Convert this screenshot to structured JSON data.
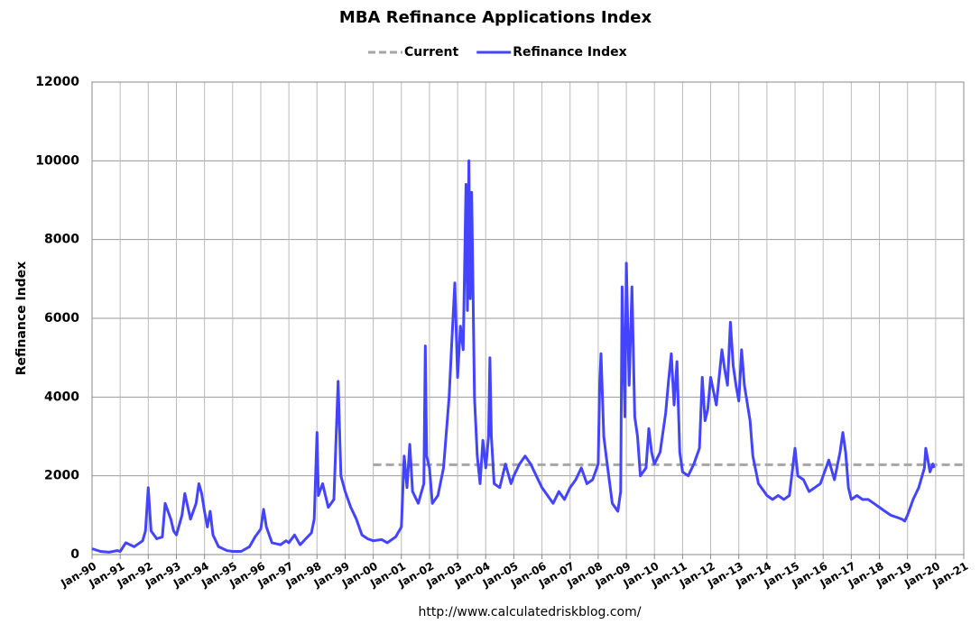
{
  "chart_data": {
    "type": "line",
    "title": "MBA Refinance Applications Index",
    "y_label": "Refinance Index",
    "source": "http://www.calculatedriskblog.com/",
    "xlim": [
      1990,
      2021
    ],
    "ylim": [
      0,
      12000
    ],
    "yticks": [
      0,
      2000,
      4000,
      6000,
      8000,
      10000,
      12000
    ],
    "grid": true,
    "legend": "top",
    "xticks": [
      {
        "value": 1990,
        "label": "Jan-90"
      },
      {
        "value": 1991,
        "label": "Jan-91"
      },
      {
        "value": 1992,
        "label": "Jan-92"
      },
      {
        "value": 1993,
        "label": "Jan-93"
      },
      {
        "value": 1994,
        "label": "Jan-94"
      },
      {
        "value": 1995,
        "label": "Jan-95"
      },
      {
        "value": 1996,
        "label": "Jan-96"
      },
      {
        "value": 1997,
        "label": "Jan-97"
      },
      {
        "value": 1998,
        "label": "Jan-98"
      },
      {
        "value": 1999,
        "label": "Jan-99"
      },
      {
        "value": 2000,
        "label": "Jan-00"
      },
      {
        "value": 2001,
        "label": "Jan-01"
      },
      {
        "value": 2002,
        "label": "Jan-02"
      },
      {
        "value": 2003,
        "label": "Jan-03"
      },
      {
        "value": 2004,
        "label": "Jan-04"
      },
      {
        "value": 2005,
        "label": "Jan-05"
      },
      {
        "value": 2006,
        "label": "Jan-06"
      },
      {
        "value": 2007,
        "label": "Jan-07"
      },
      {
        "value": 2008,
        "label": "Jan-08"
      },
      {
        "value": 2009,
        "label": "Jan-09"
      },
      {
        "value": 2010,
        "label": "Jan-10"
      },
      {
        "value": 2011,
        "label": "Jan-11"
      },
      {
        "value": 2012,
        "label": "Jan-12"
      },
      {
        "value": 2013,
        "label": "Jan-13"
      },
      {
        "value": 2014,
        "label": "Jan-14"
      },
      {
        "value": 2015,
        "label": "Jan-15"
      },
      {
        "value": 2016,
        "label": "Jan-16"
      },
      {
        "value": 2017,
        "label": "Jan-17"
      },
      {
        "value": 2018,
        "label": "Jan-18"
      },
      {
        "value": 2019,
        "label": "Jan-19"
      },
      {
        "value": 2020,
        "label": "Jan-20"
      },
      {
        "value": 2021,
        "label": "Jan-21"
      }
    ],
    "series": [
      {
        "name": "Current",
        "color": "#a6a6a6",
        "dashed": true,
        "x": [
          2000,
          2021
        ],
        "values": [
          2280,
          2280
        ]
      },
      {
        "name": "Refinance Index",
        "color": "#4444ff",
        "dashed": false,
        "x": [
          1990.0,
          1990.3,
          1990.6,
          1990.9,
          1991.0,
          1991.2,
          1991.5,
          1991.8,
          1991.9,
          1992.0,
          1992.1,
          1992.3,
          1992.5,
          1992.6,
          1992.8,
          1992.9,
          1993.0,
          1993.2,
          1993.3,
          1993.5,
          1993.7,
          1993.8,
          1993.9,
          1994.0,
          1994.1,
          1994.2,
          1994.3,
          1994.5,
          1994.8,
          1995.0,
          1995.3,
          1995.6,
          1995.8,
          1996.0,
          1996.1,
          1996.2,
          1996.4,
          1996.7,
          1996.9,
          1997.0,
          1997.2,
          1997.4,
          1997.6,
          1997.8,
          1997.9,
          1998.0,
          1998.05,
          1998.2,
          1998.4,
          1998.6,
          1998.75,
          1998.85,
          1999.0,
          1999.2,
          1999.4,
          1999.6,
          1999.8,
          2000.0,
          2000.3,
          2000.5,
          2000.8,
          2001.0,
          2001.1,
          2001.2,
          2001.3,
          2001.4,
          2001.6,
          2001.8,
          2001.85,
          2001.9,
          2002.0,
          2002.1,
          2002.3,
          2002.5,
          2002.7,
          2002.8,
          2002.9,
          2003.0,
          2003.1,
          2003.2,
          2003.3,
          2003.35,
          2003.4,
          2003.45,
          2003.5,
          2003.6,
          2003.7,
          2003.8,
          2003.9,
          2004.0,
          2004.1,
          2004.15,
          2004.2,
          2004.3,
          2004.5,
          2004.7,
          2004.9,
          2005.0,
          2005.2,
          2005.4,
          2005.6,
          2005.8,
          2006.0,
          2006.2,
          2006.4,
          2006.6,
          2006.8,
          2007.0,
          2007.2,
          2007.4,
          2007.6,
          2007.8,
          2008.0,
          2008.05,
          2008.1,
          2008.2,
          2008.3,
          2008.5,
          2008.7,
          2008.8,
          2008.85,
          2008.95,
          2009.0,
          2009.1,
          2009.2,
          2009.3,
          2009.4,
          2009.5,
          2009.7,
          2009.8,
          2009.9,
          2010.0,
          2010.2,
          2010.4,
          2010.5,
          2010.6,
          2010.7,
          2010.8,
          2010.9,
          2011.0,
          2011.2,
          2011.4,
          2011.6,
          2011.7,
          2011.8,
          2011.9,
          2012.0,
          2012.2,
          2012.4,
          2012.5,
          2012.6,
          2012.7,
          2012.8,
          2012.9,
          2013.0,
          2013.1,
          2013.2,
          2013.4,
          2013.5,
          2013.7,
          2013.9,
          2014.0,
          2014.2,
          2014.4,
          2014.6,
          2014.8,
          2015.0,
          2015.1,
          2015.3,
          2015.5,
          2015.7,
          2015.9,
          2016.0,
          2016.2,
          2016.4,
          2016.6,
          2016.7,
          2016.8,
          2016.9,
          2017.0,
          2017.2,
          2017.4,
          2017.6,
          2017.8,
          2018.0,
          2018.2,
          2018.4,
          2018.6,
          2018.8,
          2018.9,
          2019.0,
          2019.2,
          2019.4,
          2019.6,
          2019.65,
          2019.8,
          2019.9,
          2019.95
        ],
        "values": [
          150,
          80,
          60,
          100,
          80,
          300,
          200,
          350,
          600,
          1700,
          600,
          400,
          450,
          1300,
          900,
          600,
          500,
          1000,
          1550,
          900,
          1300,
          1800,
          1550,
          1100,
          700,
          1100,
          500,
          200,
          100,
          80,
          80,
          200,
          450,
          650,
          1150,
          700,
          300,
          250,
          350,
          300,
          500,
          250,
          400,
          550,
          900,
          3100,
          1500,
          1800,
          1200,
          1400,
          4400,
          2000,
          1600,
          1200,
          900,
          500,
          400,
          350,
          380,
          300,
          450,
          700,
          2500,
          1700,
          2800,
          1600,
          1300,
          1800,
          5300,
          2500,
          2200,
          1300,
          1500,
          2200,
          4000,
          5500,
          6900,
          4500,
          5800,
          5200,
          9400,
          6200,
          10000,
          6500,
          9200,
          4000,
          2500,
          1800,
          2900,
          2200,
          3000,
          5000,
          3000,
          1800,
          1700,
          2300,
          1800,
          2000,
          2300,
          2500,
          2300,
          2000,
          1700,
          1500,
          1300,
          1600,
          1400,
          1700,
          1900,
          2200,
          1800,
          1900,
          2300,
          4300,
          5100,
          3000,
          2400,
          1300,
          1100,
          1600,
          6800,
          3500,
          7400,
          4300,
          6800,
          3500,
          3000,
          2000,
          2200,
          3200,
          2600,
          2300,
          2600,
          3600,
          4400,
          5100,
          3800,
          4900,
          2600,
          2100,
          2000,
          2300,
          2700,
          4500,
          3400,
          3700,
          4500,
          3800,
          5200,
          4700,
          4300,
          5900,
          4800,
          4300,
          3900,
          5200,
          4300,
          3400,
          2500,
          1800,
          1600,
          1500,
          1400,
          1500,
          1400,
          1500,
          2700,
          2000,
          1900,
          1600,
          1700,
          1800,
          2000,
          2400,
          1900,
          2600,
          3100,
          2600,
          1700,
          1400,
          1500,
          1400,
          1400,
          1300,
          1200,
          1100,
          1000,
          950,
          900,
          850,
          1000,
          1400,
          1700,
          2200,
          2700,
          2100,
          2300,
          2200
        ]
      }
    ]
  }
}
